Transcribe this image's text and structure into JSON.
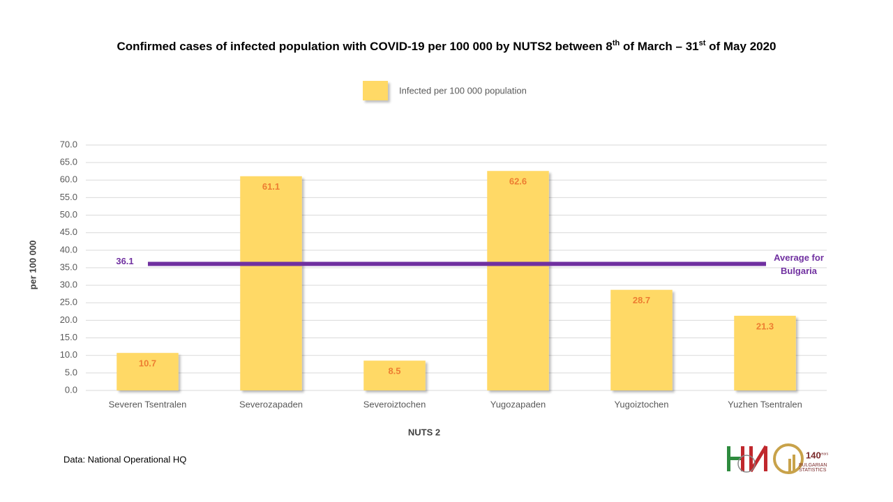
{
  "chart_data": {
    "type": "bar",
    "title": [
      "Confirmed cases of infected population  with COVID-19 per 100 000 by NUTS2 between 8",
      "th",
      " of March – 31",
      "st",
      " of May 2020"
    ],
    "x_label": "NUTS 2",
    "y_label": "per 100 000",
    "categories": [
      "Severen Tsentralen",
      "Severozapaden",
      "Severoiztochen",
      "Yugozapaden",
      "Yugoiztochen",
      "Yuzhen Tsentralen"
    ],
    "series": [
      {
        "name": "Infected per 100 000 population",
        "color": "#ffd966",
        "values": [
          10.7,
          61.1,
          8.5,
          62.6,
          28.7,
          21.3
        ]
      }
    ],
    "value_label_color": "#ed7d31",
    "average": {
      "value": 36.1,
      "label": "36.1",
      "text": [
        "Average for",
        "Bulgaria"
      ],
      "color": "#7030a0"
    },
    "ylim": [
      0,
      70
    ],
    "yticks": [
      {
        "value": 0,
        "label": "0.0"
      },
      {
        "value": 5,
        "label": "5.0"
      },
      {
        "value": 10,
        "label": "10.0"
      },
      {
        "value": 15,
        "label": "15.0"
      },
      {
        "value": 20,
        "label": "20.0"
      },
      {
        "value": 25,
        "label": "25.0"
      },
      {
        "value": 30,
        "label": "30.0"
      },
      {
        "value": 35,
        "label": "35.0"
      },
      {
        "value": 40,
        "label": "40.0"
      },
      {
        "value": 45,
        "label": "45.0"
      },
      {
        "value": 50,
        "label": "50.0"
      },
      {
        "value": 55,
        "label": "55.0"
      },
      {
        "value": 60,
        "label": "60.0"
      },
      {
        "value": 65,
        "label": "65.0"
      },
      {
        "value": 70,
        "label": "70.0"
      }
    ],
    "grid": true,
    "legend": "top"
  },
  "source": "Data: National Operational HQ",
  "logo_text": [
    "140",
    "years",
    "BULGARIAN",
    "STATISTICS"
  ]
}
